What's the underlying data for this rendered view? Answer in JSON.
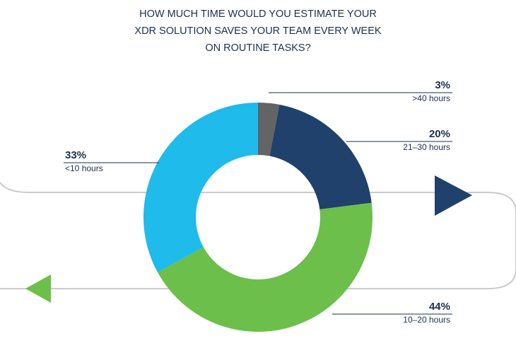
{
  "chart_data": {
    "type": "donut",
    "title": [
      "HOW MUCH TIME WOULD YOU ESTIMATE YOUR",
      "XDR SOLUTION SAVES YOUR TEAM EVERY WEEK",
      "ON ROUTINE TASKS?"
    ],
    "categories": [
      ">40 hours",
      "21–30 hours",
      "10–20 hours",
      "<10 hours"
    ],
    "values": [
      3,
      20,
      44,
      33
    ],
    "value_labels": [
      "3%",
      "20%",
      "44%",
      "33%"
    ],
    "colors": [
      "#636466",
      "#1f416b",
      "#6cbf4a",
      "#1ebbeb"
    ]
  }
}
